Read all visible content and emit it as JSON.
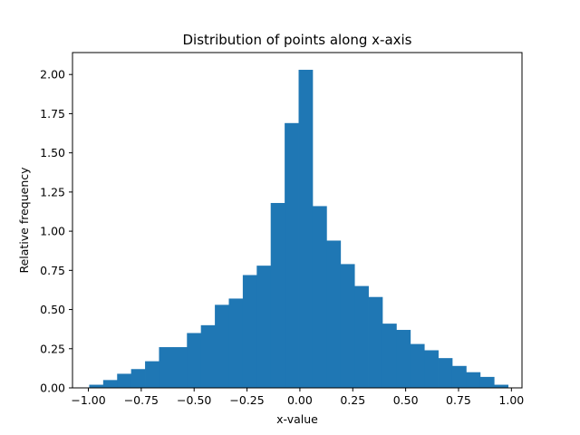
{
  "chart_data": {
    "type": "bar",
    "title": "Distribution of points along x-axis",
    "xlabel": "x-value",
    "ylabel": "Relative frequency",
    "xlim": [
      -1.075,
      1.05
    ],
    "ylim": [
      0,
      2.14
    ],
    "xticks": [
      -1.0,
      -0.75,
      -0.5,
      -0.25,
      0.0,
      0.25,
      0.5,
      0.75,
      1.0
    ],
    "xtick_labels": [
      "−1.00",
      "−0.75",
      "−0.50",
      "−0.25",
      "0.00",
      "0.25",
      "0.50",
      "0.75",
      "1.00"
    ],
    "yticks": [
      0.0,
      0.25,
      0.5,
      0.75,
      1.0,
      1.25,
      1.5,
      1.75,
      2.0
    ],
    "ytick_labels": [
      "0.00",
      "0.25",
      "0.50",
      "0.75",
      "1.00",
      "1.25",
      "1.50",
      "1.75",
      "2.00"
    ],
    "grid": false,
    "legend": "none",
    "bar_color": "#1f77b4",
    "bins": [
      {
        "start": -0.996,
        "end": -0.93,
        "value": 0.02
      },
      {
        "start": -0.93,
        "end": -0.864,
        "value": 0.05
      },
      {
        "start": -0.864,
        "end": -0.798,
        "value": 0.09
      },
      {
        "start": -0.798,
        "end": -0.732,
        "value": 0.12
      },
      {
        "start": -0.732,
        "end": -0.666,
        "value": 0.17
      },
      {
        "start": -0.666,
        "end": -0.6,
        "value": 0.26
      },
      {
        "start": -0.6,
        "end": -0.534,
        "value": 0.26
      },
      {
        "start": -0.534,
        "end": -0.468,
        "value": 0.35
      },
      {
        "start": -0.468,
        "end": -0.402,
        "value": 0.4
      },
      {
        "start": -0.402,
        "end": -0.336,
        "value": 0.53
      },
      {
        "start": -0.336,
        "end": -0.27,
        "value": 0.57
      },
      {
        "start": -0.27,
        "end": -0.204,
        "value": 0.72
      },
      {
        "start": -0.204,
        "end": -0.138,
        "value": 0.78
      },
      {
        "start": -0.138,
        "end": -0.072,
        "value": 1.18
      },
      {
        "start": -0.072,
        "end": -0.006,
        "value": 1.69
      },
      {
        "start": -0.006,
        "end": 0.06,
        "value": 2.03
      },
      {
        "start": 0.06,
        "end": 0.126,
        "value": 1.16
      },
      {
        "start": 0.126,
        "end": 0.192,
        "value": 0.94
      },
      {
        "start": 0.192,
        "end": 0.258,
        "value": 0.79
      },
      {
        "start": 0.258,
        "end": 0.324,
        "value": 0.65
      },
      {
        "start": 0.324,
        "end": 0.39,
        "value": 0.58
      },
      {
        "start": 0.39,
        "end": 0.456,
        "value": 0.41
      },
      {
        "start": 0.456,
        "end": 0.522,
        "value": 0.37
      },
      {
        "start": 0.522,
        "end": 0.588,
        "value": 0.28
      },
      {
        "start": 0.588,
        "end": 0.654,
        "value": 0.24
      },
      {
        "start": 0.654,
        "end": 0.72,
        "value": 0.19
      },
      {
        "start": 0.72,
        "end": 0.786,
        "value": 0.14
      },
      {
        "start": 0.786,
        "end": 0.852,
        "value": 0.1
      },
      {
        "start": 0.852,
        "end": 0.918,
        "value": 0.07
      },
      {
        "start": 0.918,
        "end": 0.984,
        "value": 0.02
      }
    ]
  }
}
